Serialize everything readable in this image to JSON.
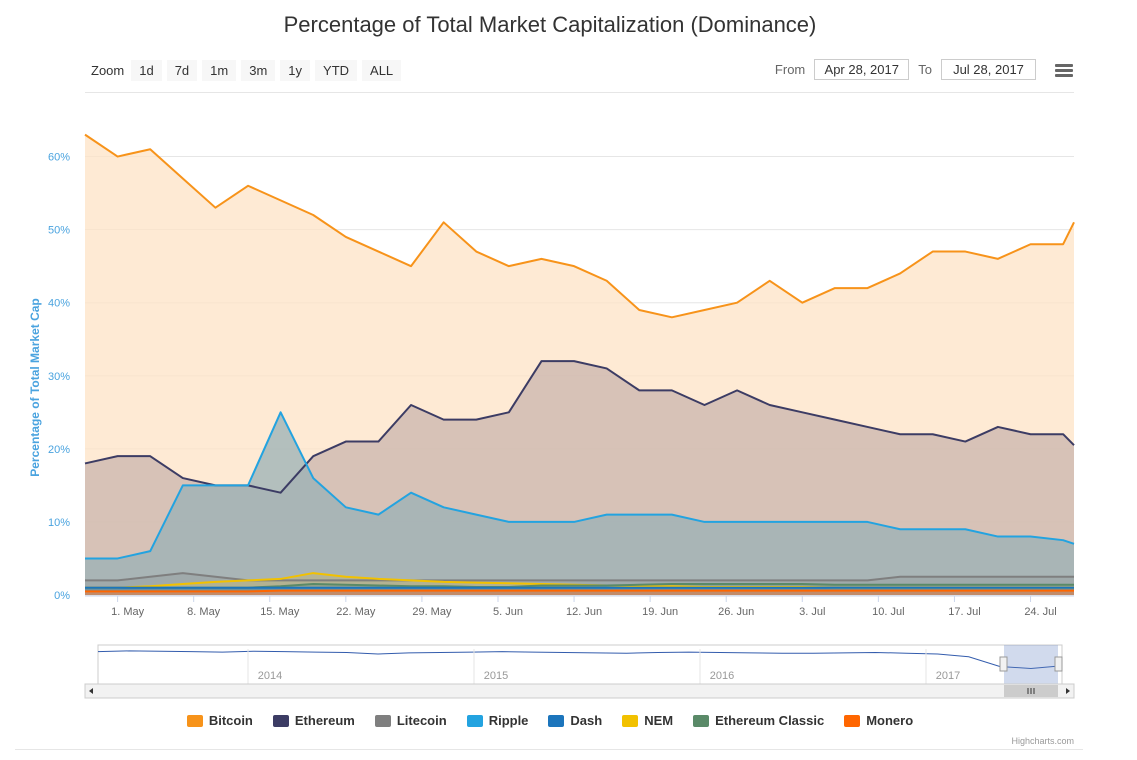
{
  "chart_data": {
    "type": "area",
    "title": "Percentage of Total Market Capitalization (Dominance)",
    "ylabel": "Percentage of Total Market Cap",
    "ylim": [
      0,
      65
    ],
    "y_ticks": [
      "0%",
      "10%",
      "20%",
      "30%",
      "40%",
      "50%",
      "60%"
    ],
    "x_range": [
      "2017-04-28",
      "2017-07-28"
    ],
    "x_ticks": [
      "1. May",
      "8. May",
      "15. May",
      "22. May",
      "29. May",
      "5. Jun",
      "12. Jun",
      "19. Jun",
      "26. Jun",
      "3. Jul",
      "10. Jul",
      "17. Jul",
      "24. Jul"
    ],
    "grid": true,
    "legend_position": "bottom",
    "x_day_offsets": [
      0,
      3,
      6,
      9,
      12,
      15,
      18,
      21,
      24,
      27,
      30,
      33,
      36,
      39,
      42,
      45,
      48,
      51,
      54,
      57,
      60,
      63,
      66,
      69,
      72,
      75,
      78,
      81,
      84,
      87,
      90,
      91
    ],
    "series": [
      {
        "name": "Bitcoin",
        "color": "#f7931a",
        "fill": "#fde3c6",
        "values": [
          63,
          60,
          61,
          57,
          53,
          56,
          54,
          52,
          49,
          47,
          45,
          51,
          47,
          45,
          46,
          45,
          43,
          39,
          38,
          39,
          40,
          43,
          40,
          42,
          42,
          44,
          47,
          47,
          46,
          48,
          48,
          51
        ]
      },
      {
        "name": "Ethereum",
        "color": "#3c3c64",
        "fill": "#c9b4ad",
        "values": [
          18,
          19,
          19,
          16,
          15,
          15,
          14,
          19,
          21,
          21,
          26,
          24,
          24,
          25,
          32,
          32,
          31,
          28,
          28,
          26,
          28,
          26,
          25,
          24,
          23,
          22,
          22,
          21,
          23,
          22,
          22,
          20.5
        ]
      },
      {
        "name": "Ripple",
        "color": "#23a3e0",
        "fill": "#9ab0b6",
        "values": [
          5,
          5,
          6,
          15,
          15,
          15,
          25,
          16,
          12,
          11,
          14,
          12,
          11,
          10,
          10,
          10,
          11,
          11,
          11,
          10,
          10,
          10,
          10,
          10,
          10,
          9,
          9,
          9,
          8,
          8,
          7.5,
          7
        ]
      },
      {
        "name": "Litecoin",
        "color": "#7f7f7f",
        "fill": "#9ea7a7",
        "values": [
          2,
          2,
          2.5,
          3,
          2.5,
          2,
          2,
          2,
          2,
          2,
          2,
          2,
          2,
          2,
          2,
          2,
          2,
          2,
          2,
          2,
          2,
          2,
          2,
          2,
          2,
          2.5,
          2.5,
          2.5,
          2.5,
          2.5,
          2.5,
          2.5
        ]
      },
      {
        "name": "NEM",
        "color": "#f2c100",
        "fill": "#b9b48a",
        "values": [
          1,
          1,
          1.2,
          1.5,
          1.8,
          2,
          2.2,
          3,
          2.5,
          2.2,
          2,
          1.8,
          1.7,
          1.6,
          1.5,
          1.4,
          1.3,
          1.2,
          1.2,
          1.1,
          1.1,
          1.1,
          1.1,
          1,
          1,
          1,
          1,
          1,
          1,
          1,
          1,
          1
        ]
      },
      {
        "name": "Ethereum Classic",
        "color": "#5a8a68",
        "fill": "#889e8c",
        "values": [
          1,
          1,
          1,
          1,
          1,
          1,
          1.2,
          1.5,
          1.4,
          1.3,
          1.2,
          1.2,
          1.1,
          1.1,
          1.3,
          1.3,
          1.3,
          1.4,
          1.5,
          1.5,
          1.5,
          1.5,
          1.5,
          1.4,
          1.4,
          1.4,
          1.4,
          1.4,
          1.4,
          1.4,
          1.4,
          1.4
        ]
      },
      {
        "name": "Dash",
        "color": "#1c75bc",
        "fill": "#5c89a8",
        "values": [
          1,
          1,
          1,
          1,
          1,
          1,
          1,
          1,
          1,
          1,
          1,
          1,
          1,
          1,
          1,
          1,
          1,
          1,
          1,
          1,
          1,
          1,
          1,
          1,
          1,
          1,
          1,
          1,
          1,
          1,
          1,
          1
        ]
      },
      {
        "name": "Monero",
        "color": "#ff6600",
        "fill": "#e08a55",
        "values": [
          0.5,
          0.5,
          0.5,
          0.5,
          0.5,
          0.5,
          0.6,
          0.6,
          0.6,
          0.6,
          0.6,
          0.6,
          0.6,
          0.6,
          0.6,
          0.6,
          0.6,
          0.6,
          0.6,
          0.6,
          0.6,
          0.6,
          0.6,
          0.6,
          0.6,
          0.6,
          0.6,
          0.6,
          0.6,
          0.6,
          0.6,
          0.6
        ]
      }
    ],
    "legend_order": [
      "Bitcoin",
      "Ethereum",
      "Litecoin",
      "Ripple",
      "Dash",
      "NEM",
      "Ethereum Classic",
      "Monero"
    ],
    "navigator": {
      "years": [
        "2014",
        "2015",
        "2016",
        "2017"
      ],
      "values": [
        88,
        90,
        89,
        88,
        87,
        89,
        88,
        87,
        86,
        82,
        85,
        86,
        87,
        88,
        87,
        86,
        85,
        84,
        86,
        87,
        86,
        85,
        84,
        84,
        85,
        86,
        84,
        82,
        75,
        50,
        45,
        52
      ]
    }
  },
  "title": "Percentage of Total Market Capitalization (Dominance)",
  "zoom": {
    "label": "Zoom",
    "buttons": [
      "1d",
      "7d",
      "1m",
      "3m",
      "1y",
      "YTD",
      "ALL"
    ]
  },
  "range": {
    "from_label": "From",
    "from_value": "Apr 28, 2017",
    "to_label": "To",
    "to_value": "Jul 28, 2017"
  },
  "menu_icon": "hamburger-icon",
  "credits": "Highcharts.com"
}
